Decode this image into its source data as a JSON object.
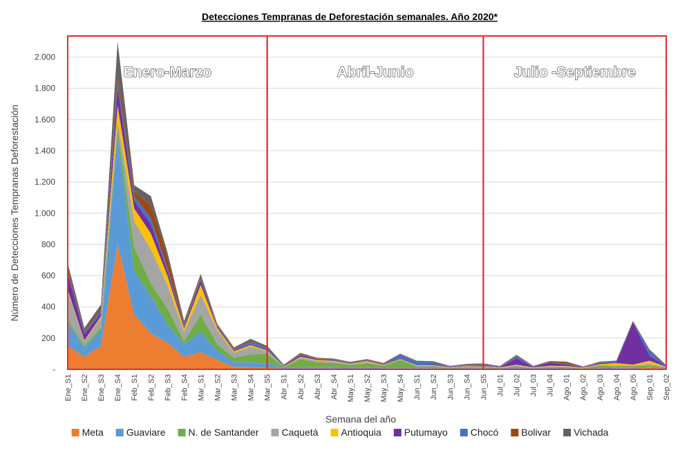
{
  "chart_data": {
    "type": "area",
    "stacked": true,
    "title": "Detecciones Tempranas de Deforestación semanales. Año 2020*",
    "xlabel": "Semana del año",
    "ylabel": "Número de Detecciones Tempranas Deforestación",
    "ylim": [
      0,
      2100
    ],
    "yticks": [
      0,
      200,
      400,
      600,
      800,
      1000,
      1200,
      1400,
      1600,
      1800,
      2000
    ],
    "ytick_labels": [
      "-",
      "200",
      "400",
      "600",
      "800",
      "1.000",
      "1.200",
      "1.400",
      "1.600",
      "1.800",
      "2.000"
    ],
    "grid": "horizontal",
    "legend_position": "bottom",
    "periods": [
      {
        "label": "Enero-Marzo",
        "from": "Ene_S1",
        "to": "Mar_S5"
      },
      {
        "label": "Abril-Junio",
        "from": "Mar_S5",
        "to": "Jun_S5"
      },
      {
        "label": "Julio -Septiembre",
        "from": "Jun_S5",
        "to": "Sep_02"
      }
    ],
    "categories": [
      "Ene_S1",
      "Ene_S2",
      "Ene_S3",
      "Ene_S4",
      "Feb_S1",
      "Feb_S2",
      "Feb_S3",
      "Feb_S4",
      "Mar_S1",
      "Mar_S2",
      "Mar_S3",
      "Mar_S4",
      "Mar_S5",
      "Abr_S1",
      "Abr_S2",
      "Abr_S3",
      "Abr_S4",
      "May_S1",
      "May_S2",
      "May_S3",
      "May_S4",
      "Jun_S1",
      "Jun_S2",
      "Jun_S3",
      "Jun_S4",
      "Jun_S5",
      "Jul_01",
      "Jul_02",
      "Jul_03",
      "Jul_04",
      "Ago_01",
      "Ago_02",
      "Ago_03",
      "Ago_04",
      "Ago_05",
      "Sep_01",
      "Sep_02"
    ],
    "series": [
      {
        "name": "Meta",
        "color": "#ED7D31",
        "values": [
          150,
          80,
          150,
          800,
          350,
          230,
          170,
          80,
          110,
          60,
          15,
          15,
          10,
          3,
          5,
          5,
          5,
          3,
          3,
          3,
          3,
          3,
          3,
          3,
          3,
          3,
          3,
          5,
          3,
          5,
          3,
          2,
          3,
          5,
          5,
          10,
          5
        ]
      },
      {
        "name": "Guaviare",
        "color": "#5B9BD5",
        "values": [
          150,
          60,
          100,
          700,
          280,
          240,
          120,
          80,
          130,
          60,
          30,
          30,
          30,
          5,
          10,
          10,
          10,
          10,
          10,
          5,
          5,
          5,
          5,
          3,
          5,
          5,
          3,
          10,
          3,
          5,
          5,
          3,
          5,
          5,
          5,
          5,
          5
        ]
      },
      {
        "name": "N. de Santander",
        "color": "#70AD47",
        "values": [
          20,
          10,
          20,
          40,
          150,
          80,
          100,
          20,
          110,
          40,
          30,
          50,
          60,
          5,
          50,
          30,
          25,
          15,
          25,
          15,
          50,
          10,
          10,
          3,
          5,
          5,
          2,
          5,
          2,
          5,
          5,
          2,
          15,
          10,
          10,
          10,
          3
        ]
      },
      {
        "name": "Caquetá",
        "color": "#A5A5A5",
        "values": [
          180,
          30,
          60,
          50,
          170,
          220,
          150,
          60,
          130,
          90,
          30,
          50,
          15,
          3,
          10,
          10,
          10,
          5,
          10,
          3,
          5,
          5,
          5,
          2,
          5,
          3,
          2,
          5,
          2,
          5,
          5,
          2,
          5,
          5,
          5,
          10,
          2
        ]
      },
      {
        "name": "Antioquia",
        "color": "#FFC000",
        "values": [
          10,
          5,
          10,
          100,
          80,
          100,
          60,
          20,
          60,
          15,
          10,
          10,
          5,
          2,
          5,
          5,
          5,
          3,
          5,
          3,
          3,
          3,
          3,
          2,
          3,
          3,
          2,
          5,
          2,
          3,
          3,
          1,
          5,
          15,
          5,
          20,
          2
        ]
      },
      {
        "name": "Putumayo",
        "color": "#7030A0",
        "values": [
          100,
          40,
          20,
          120,
          50,
          60,
          30,
          10,
          30,
          10,
          5,
          5,
          5,
          5,
          10,
          5,
          5,
          3,
          3,
          3,
          3,
          3,
          5,
          2,
          3,
          3,
          2,
          40,
          3,
          20,
          10,
          2,
          5,
          5,
          270,
          30,
          2
        ]
      },
      {
        "name": "Chocó",
        "color": "#4472C4",
        "values": [
          20,
          10,
          20,
          40,
          30,
          40,
          20,
          10,
          10,
          5,
          10,
          15,
          15,
          2,
          5,
          3,
          3,
          3,
          3,
          3,
          25,
          20,
          15,
          3,
          5,
          10,
          3,
          15,
          3,
          2,
          5,
          2,
          5,
          5,
          5,
          35,
          5
        ]
      },
      {
        "name": "Bolivar",
        "color": "#9E480E",
        "values": [
          20,
          10,
          15,
          50,
          30,
          80,
          70,
          10,
          10,
          5,
          5,
          5,
          5,
          2,
          5,
          3,
          3,
          3,
          3,
          3,
          3,
          3,
          3,
          2,
          3,
          3,
          2,
          5,
          2,
          5,
          10,
          2,
          3,
          3,
          3,
          5,
          2
        ]
      },
      {
        "name": "Vichada",
        "color": "#636363",
        "values": [
          30,
          20,
          20,
          200,
          40,
          60,
          30,
          20,
          20,
          5,
          5,
          15,
          5,
          3,
          5,
          3,
          3,
          3,
          3,
          3,
          3,
          3,
          3,
          2,
          3,
          3,
          2,
          3,
          2,
          3,
          3,
          2,
          3,
          3,
          3,
          3,
          2
        ]
      }
    ]
  }
}
